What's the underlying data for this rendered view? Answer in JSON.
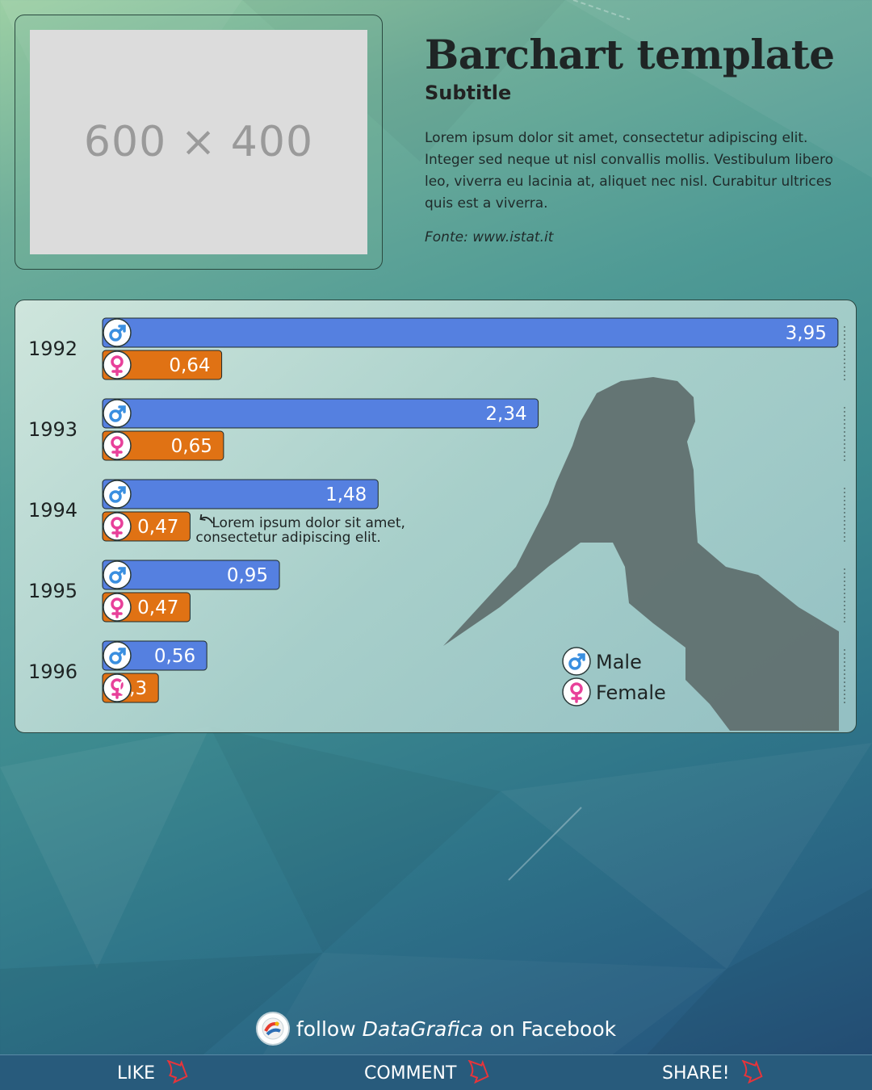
{
  "header": {
    "image_placeholder": "600 × 400",
    "title": "Barchart template",
    "subtitle": "Subtitle",
    "description": "Lorem ipsum dolor sit amet, consectetur adipiscing elit. Integer sed neque ut nisl convallis mollis. Vestibulum libero leo, viverra eu lacinia at, aliquet nec nisl. Curabitur ultrices quis est a viverra.",
    "source": "Fonte: www.istat.it"
  },
  "chart_data": {
    "type": "bar",
    "orientation": "horizontal",
    "categories": [
      "1992",
      "1993",
      "1994",
      "1995",
      "1996"
    ],
    "series": [
      {
        "name": "Male",
        "color": "#5580e0",
        "values": [
          3.95,
          2.34,
          1.48,
          0.95,
          0.56
        ],
        "labels": [
          "3,95",
          "2,34",
          "1,48",
          "0,95",
          "0,56"
        ]
      },
      {
        "name": "Female",
        "color": "#e07214",
        "values": [
          0.64,
          0.65,
          0.47,
          0.47,
          0.3
        ],
        "labels": [
          "0,64",
          "0,65",
          "0,47",
          "0,47",
          "0,3"
        ]
      }
    ],
    "annotation": {
      "category": "1994",
      "series": "Female",
      "text_line1": "Lorem ipsum dolor sit amet,",
      "text_line2": "consectetur adipiscing elit."
    },
    "legend_position": "bottom-right",
    "grid": false
  },
  "colors": {
    "male_bar": "#5580e0",
    "female_bar": "#e07214",
    "male_symbol": "#3a8fe0",
    "female_symbol": "#e8409a"
  },
  "icons": {
    "male": "male-symbol-icon",
    "female": "female-symbol-icon",
    "decoration": "hand-knife-silhouette",
    "arrow": "curved-arrow-icon"
  },
  "footer": {
    "follow_prefix": "follow",
    "brand": "DataGrafica",
    "follow_suffix": "on Facebook",
    "actions": [
      {
        "label": "LIKE"
      },
      {
        "label": "COMMENT"
      },
      {
        "label": "SHARE!"
      }
    ]
  }
}
